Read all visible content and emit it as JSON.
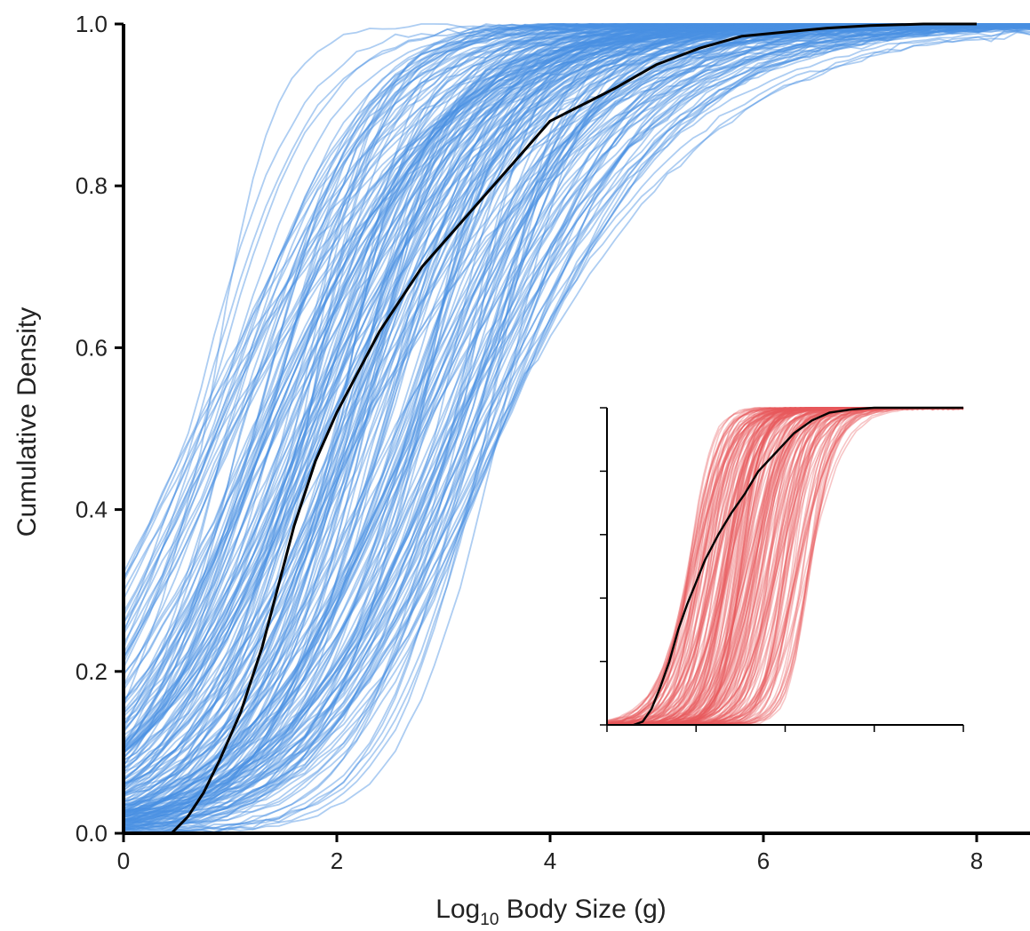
{
  "chart_data": [
    {
      "type": "line",
      "title": "",
      "xlabel": "Log10 Body Size (g)",
      "xlabel_main": "Log",
      "xlabel_sub": "10",
      "xlabel_rest": " Body Size (g)",
      "ylabel": "Cumulative Density",
      "xlim": [
        0,
        8.5
      ],
      "ylim": [
        0,
        1
      ],
      "xticks": [
        0,
        2,
        4,
        6,
        8
      ],
      "xtick_labels": [
        "0",
        "2",
        "4",
        "6",
        "8"
      ],
      "yticks": [
        0,
        0.2,
        0.4,
        0.6,
        0.8,
        1.0
      ],
      "ytick_labels": [
        "0.0",
        "0.2",
        "0.4",
        "0.6",
        "0.8",
        "1.0"
      ],
      "grid": false,
      "ensemble": {
        "color": "#4a90e2",
        "count": 220,
        "description_median_range": [
          0.6,
          3.6
        ]
      },
      "series": [
        {
          "color": "#000000",
          "x": [
            0.45,
            0.6,
            0.75,
            0.9,
            1.0,
            1.1,
            1.2,
            1.3,
            1.4,
            1.5,
            1.6,
            1.7,
            1.8,
            1.9,
            2.0,
            2.2,
            2.4,
            2.6,
            2.8,
            3.0,
            3.2,
            3.4,
            3.6,
            3.8,
            4.0,
            4.3,
            4.6,
            5.0,
            5.4,
            5.8,
            6.2,
            6.6,
            7.0,
            7.5,
            8.0
          ],
          "y": [
            0.0,
            0.02,
            0.05,
            0.09,
            0.12,
            0.15,
            0.19,
            0.23,
            0.28,
            0.33,
            0.38,
            0.42,
            0.46,
            0.49,
            0.52,
            0.57,
            0.62,
            0.66,
            0.7,
            0.73,
            0.76,
            0.79,
            0.82,
            0.85,
            0.88,
            0.9,
            0.92,
            0.95,
            0.97,
            0.985,
            0.99,
            0.995,
            0.998,
            1.0,
            1.0
          ]
        }
      ]
    },
    {
      "type": "line",
      "title": "",
      "xlabel": "",
      "ylabel": "",
      "xlim": [
        0,
        8
      ],
      "ylim": [
        0,
        1
      ],
      "xticks": [
        0,
        2,
        4,
        6,
        8
      ],
      "yticks": [
        0,
        0.2,
        0.4,
        0.6,
        0.8,
        1.0
      ],
      "grid": false,
      "ensemble": {
        "color": "#e8595c",
        "count": 180,
        "description_median_range": [
          1.8,
          4.6
        ]
      },
      "series": [
        {
          "color": "#000000",
          "x": [
            0.6,
            0.8,
            1.0,
            1.2,
            1.4,
            1.6,
            1.8,
            2.0,
            2.2,
            2.5,
            2.8,
            3.1,
            3.4,
            3.8,
            4.2,
            4.6,
            5.0,
            5.5,
            6.0,
            7.0,
            8.0
          ],
          "y": [
            0.0,
            0.01,
            0.05,
            0.12,
            0.2,
            0.3,
            0.38,
            0.45,
            0.52,
            0.6,
            0.67,
            0.73,
            0.8,
            0.86,
            0.92,
            0.96,
            0.985,
            0.995,
            1.0,
            1.0,
            1.0
          ]
        }
      ]
    }
  ]
}
